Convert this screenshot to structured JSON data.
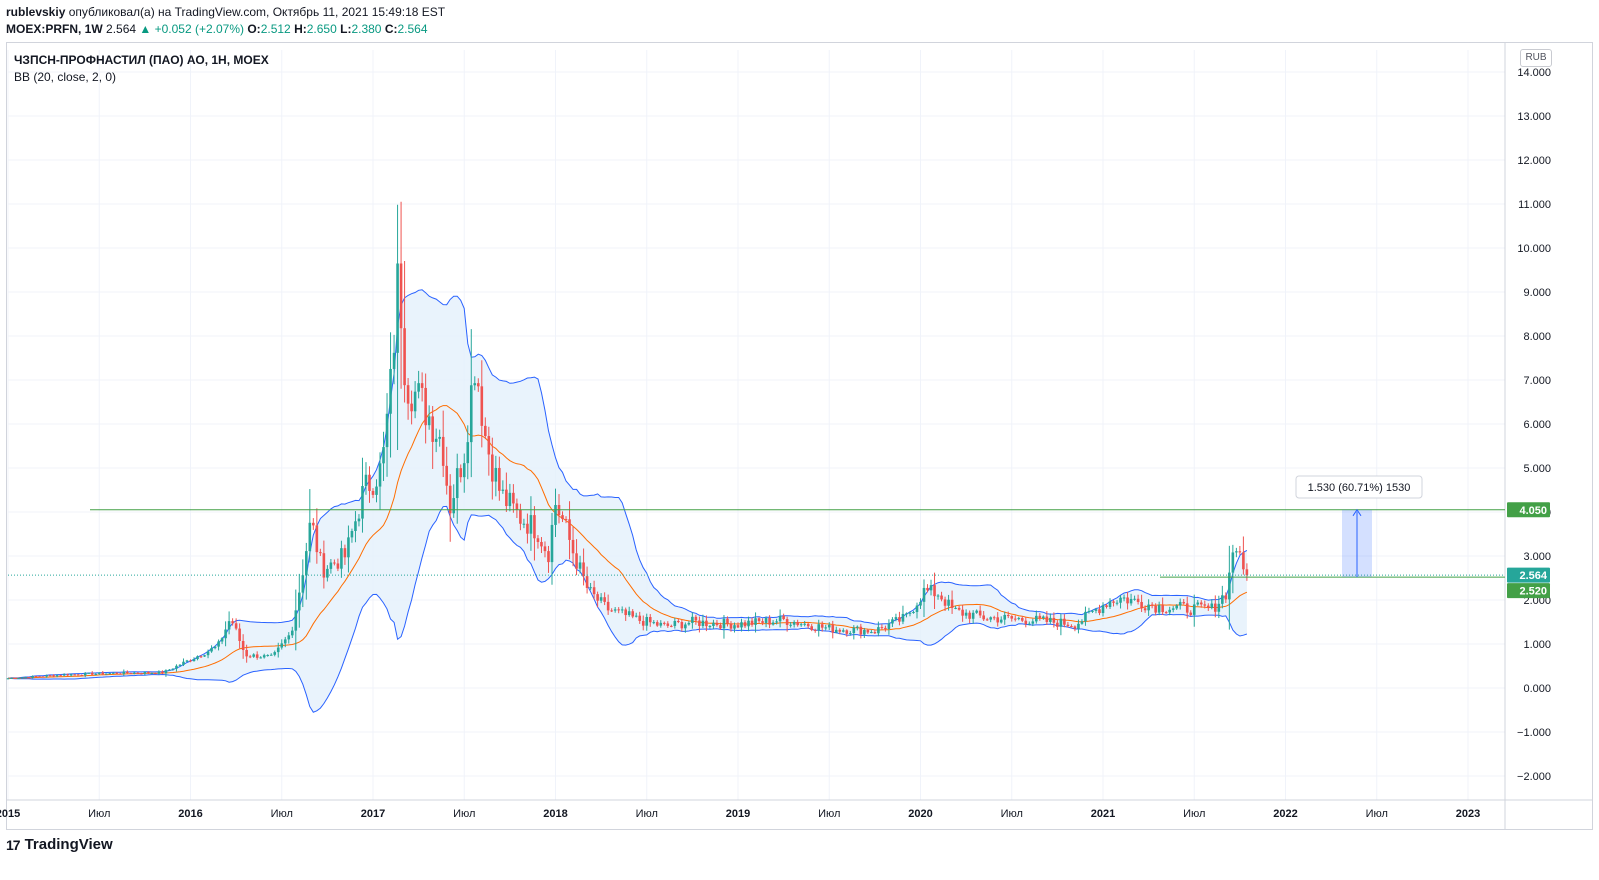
{
  "header": {
    "author": "rublevskiy",
    "published_text": "опубликовал(а) на TradingView.com, Октябрь 11, 2021 15:49:18 EST",
    "symbol": "MOEX:PRFN, 1W",
    "last": "2.564",
    "change": "▲ +0.052 (+2.07%)",
    "o_label": "O:",
    "o_value": "2.512",
    "h_label": "H:",
    "h_value": "2.650",
    "l_label": "L:",
    "l_value": "2.380",
    "c_label": "C:",
    "c_value": "2.564"
  },
  "legend": {
    "title": "ЧЗПСН-ПРОФНАСТИЛ (ПАО) АО, 1Н, MOEX",
    "indicator": "BB (20, close, 2, 0)"
  },
  "currency": "RUB",
  "brand": "TradingView",
  "colors": {
    "up": "#26a69a",
    "down": "#ef5350",
    "bb_band": "#2962ff",
    "bb_basis": "#ff6d00",
    "bb_fill": "#e3f0fb",
    "level_line": "#43a047",
    "price_line": "#26a69a"
  },
  "chart_data": {
    "type": "candlestick",
    "title": "ЧЗПСН-ПРОФНАСТИЛ (ПАО) АО, 1Н, MOEX",
    "y_ticks": [
      "14.000",
      "13.000",
      "12.000",
      "11.000",
      "10.000",
      "9.000",
      "8.000",
      "7.000",
      "6.000",
      "5.000",
      "4.000",
      "3.000",
      "2.000",
      "1.000",
      "0.000",
      "−1.000",
      "−2.000"
    ],
    "ylim": [
      -2.3,
      14.4
    ],
    "x_ticks": [
      {
        "label": "2015",
        "t": 2015.0
      },
      {
        "label": "Июл",
        "t": 2015.5
      },
      {
        "label": "2016",
        "t": 2016.0
      },
      {
        "label": "Июл",
        "t": 2016.5
      },
      {
        "label": "2017",
        "t": 2017.0
      },
      {
        "label": "Июл",
        "t": 2017.5
      },
      {
        "label": "2018",
        "t": 2018.0
      },
      {
        "label": "Июл",
        "t": 2018.5
      },
      {
        "label": "2019",
        "t": 2019.0
      },
      {
        "label": "Июл",
        "t": 2019.5
      },
      {
        "label": "2020",
        "t": 2020.0
      },
      {
        "label": "Июл",
        "t": 2020.5
      },
      {
        "label": "2021",
        "t": 2021.0
      },
      {
        "label": "Июл",
        "t": 2021.5
      },
      {
        "label": "2022",
        "t": 2022.0
      },
      {
        "label": "Июл",
        "t": 2022.5
      },
      {
        "label": "2023",
        "t": 2023.0
      }
    ],
    "price_anchors": [
      [
        2015.0,
        0.22
      ],
      [
        2015.3,
        0.3
      ],
      [
        2015.6,
        0.34
      ],
      [
        2015.85,
        0.35
      ],
      [
        2016.0,
        0.65
      ],
      [
        2016.15,
        0.95
      ],
      [
        2016.22,
        1.6
      ],
      [
        2016.3,
        0.75
      ],
      [
        2016.45,
        0.7
      ],
      [
        2016.55,
        1.25
      ],
      [
        2016.6,
        2.3
      ],
      [
        2016.66,
        3.8
      ],
      [
        2016.72,
        2.7
      ],
      [
        2016.85,
        3.0
      ],
      [
        2016.95,
        4.5
      ],
      [
        2017.05,
        5.0
      ],
      [
        2017.1,
        7.0
      ],
      [
        2017.14,
        9.5
      ],
      [
        2017.18,
        7.0
      ],
      [
        2017.28,
        6.4
      ],
      [
        2017.38,
        5.6
      ],
      [
        2017.42,
        4.1
      ],
      [
        2017.5,
        5.4
      ],
      [
        2017.56,
        7.5
      ],
      [
        2017.62,
        5.6
      ],
      [
        2017.7,
        4.4
      ],
      [
        2017.8,
        3.9
      ],
      [
        2017.9,
        3.6
      ],
      [
        2017.96,
        3.05
      ],
      [
        2018.0,
        4.2
      ],
      [
        2018.05,
        3.7
      ],
      [
        2018.1,
        3.05
      ],
      [
        2018.18,
        2.2
      ],
      [
        2018.28,
        1.8
      ],
      [
        2018.45,
        1.55
      ],
      [
        2018.6,
        1.4
      ],
      [
        2018.75,
        1.5
      ],
      [
        2019.0,
        1.45
      ],
      [
        2019.25,
        1.55
      ],
      [
        2019.5,
        1.35
      ],
      [
        2019.75,
        1.3
      ],
      [
        2019.92,
        1.6
      ],
      [
        2020.02,
        2.2
      ],
      [
        2020.1,
        2.15
      ],
      [
        2020.18,
        1.75
      ],
      [
        2020.35,
        1.6
      ],
      [
        2020.6,
        1.55
      ],
      [
        2020.85,
        1.45
      ],
      [
        2021.02,
        1.95
      ],
      [
        2021.1,
        2.05
      ],
      [
        2021.3,
        1.85
      ],
      [
        2021.5,
        1.8
      ],
      [
        2021.6,
        1.8
      ],
      [
        2021.68,
        2.2
      ],
      [
        2021.72,
        3.4
      ],
      [
        2021.76,
        2.7
      ],
      [
        2021.79,
        2.56
      ]
    ],
    "levels": [
      {
        "name": "resistance",
        "value": 4.05,
        "label": "4.050"
      },
      {
        "name": "last",
        "value": 2.564,
        "label": "2.564"
      },
      {
        "name": "level",
        "value": 2.52,
        "label": "2.520"
      }
    ],
    "measurement": {
      "label": "1.530 (60.71%) 1530",
      "from": 2.52,
      "to": 4.05
    }
  }
}
